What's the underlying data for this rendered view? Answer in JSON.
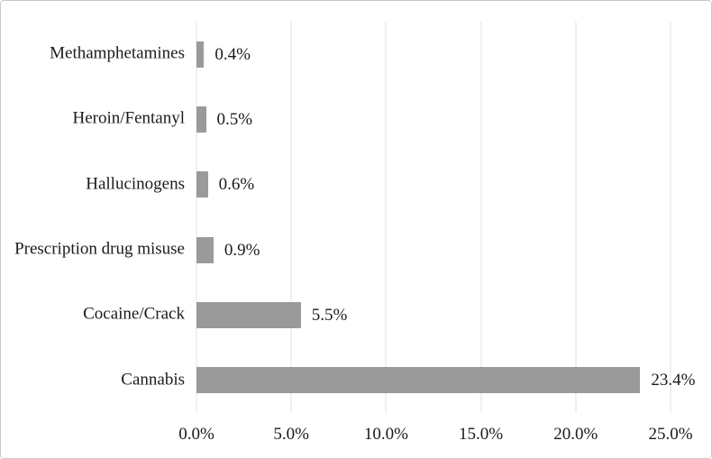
{
  "figure": {
    "background": "#ffffff",
    "border_color": "#c9c9c9"
  },
  "chart_data": {
    "type": "bar",
    "orientation": "horizontal",
    "title": "",
    "categories": [
      "Methamphetamines",
      "Heroin/Fentanyl",
      "Hallucinogens",
      "Prescription drug misuse",
      "Cocaine/Crack",
      "Cannabis"
    ],
    "values": [
      0.4,
      0.5,
      0.6,
      0.9,
      5.5,
      23.4
    ],
    "value_labels": [
      "0.4%",
      "0.5%",
      "0.6%",
      "0.9%",
      "5.5%",
      "23.4%"
    ],
    "x_axis": {
      "min": 0,
      "max": 25,
      "tick_values": [
        0,
        5,
        10,
        15,
        20,
        25
      ],
      "tick_labels": [
        "0.0%",
        "5.0%",
        "10.0%",
        "15.0%",
        "20.0%",
        "25.0%"
      ]
    },
    "grid": "vertical-on",
    "legend": "none",
    "bar_color": "#9a9a9a",
    "gridline_color": "#e2e2e2",
    "text_color": "#1a1a1a"
  }
}
